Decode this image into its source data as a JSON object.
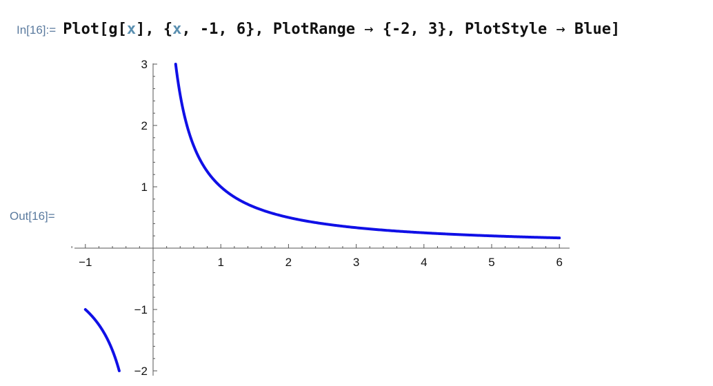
{
  "input": {
    "label": "In[16]:=",
    "tokens": [
      {
        "text": "Plot[g[",
        "kind": "code"
      },
      {
        "text": "x",
        "kind": "var"
      },
      {
        "text": "], {",
        "kind": "code"
      },
      {
        "text": "x",
        "kind": "var"
      },
      {
        "text": ", -1, 6}, PlotRange",
        "kind": "code"
      },
      {
        "text": " → ",
        "kind": "op"
      },
      {
        "text": "{-2, 3}, PlotStyle",
        "kind": "code"
      },
      {
        "text": " → ",
        "kind": "op"
      },
      {
        "text": "Blue]",
        "kind": "code"
      }
    ]
  },
  "output": {
    "label": "Out[16]="
  },
  "colors": {
    "curve": "#1010e6",
    "label": "#5a7a9e",
    "axis": "#555555"
  },
  "chart_data": {
    "type": "line",
    "function_description": "y = 1/x",
    "xlim": [
      -1,
      6
    ],
    "ylim": [
      -2,
      3
    ],
    "xticks": [
      -1,
      1,
      2,
      3,
      4,
      5,
      6
    ],
    "yticks": [
      -2,
      -1,
      1,
      2,
      3
    ],
    "xtick_labels": [
      "−1",
      "1",
      "2",
      "3",
      "4",
      "5",
      "6"
    ],
    "ytick_labels": [
      "−2",
      "−1",
      "1",
      "2",
      "3"
    ],
    "series": [
      {
        "x": [
          -1,
          -0.9,
          -0.8,
          -0.7,
          -0.6,
          -0.5,
          0.333,
          0.4,
          0.5,
          0.6,
          0.7,
          0.8,
          1,
          1.25,
          1.5,
          2,
          2.5,
          3,
          3.5,
          4,
          4.5,
          5,
          5.5,
          6
        ],
        "y": [
          -1,
          -1.111,
          -1.25,
          -1.429,
          -1.667,
          -2,
          3,
          2.5,
          2,
          1.667,
          1.429,
          1.25,
          1,
          0.8,
          0.667,
          0.5,
          0.4,
          0.333,
          0.286,
          0.25,
          0.222,
          0.2,
          0.182,
          0.167
        ]
      }
    ]
  }
}
